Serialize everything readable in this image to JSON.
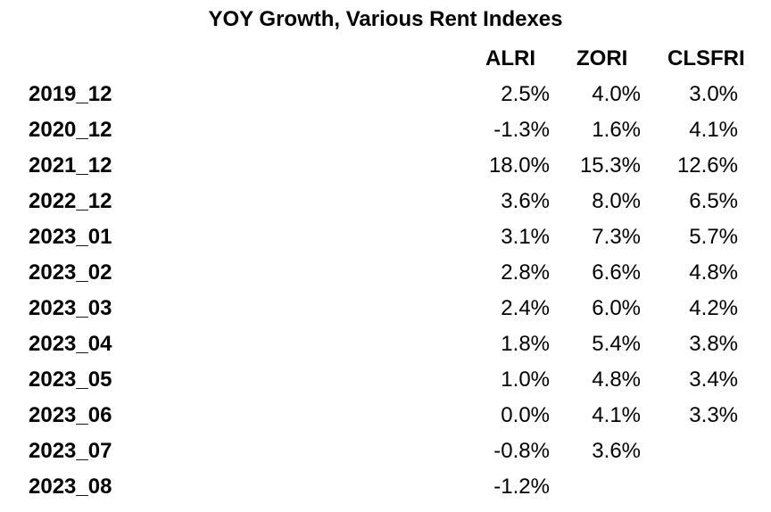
{
  "chart_data": {
    "type": "table",
    "title": "YOY Growth, Various Rent Indexes",
    "columns": [
      "ALRI",
      "ZORI",
      "CLSFRI"
    ],
    "rows": [
      {
        "label": "2019_12",
        "values": [
          "2.5%",
          "4.0%",
          "3.0%"
        ]
      },
      {
        "label": "2020_12",
        "values": [
          "-1.3%",
          "1.6%",
          "4.1%"
        ]
      },
      {
        "label": "2021_12",
        "values": [
          "18.0%",
          "15.3%",
          "12.6%"
        ]
      },
      {
        "label": "2022_12",
        "values": [
          "3.6%",
          "8.0%",
          "6.5%"
        ]
      },
      {
        "label": "2023_01",
        "values": [
          "3.1%",
          "7.3%",
          "5.7%"
        ]
      },
      {
        "label": "2023_02",
        "values": [
          "2.8%",
          "6.6%",
          "4.8%"
        ]
      },
      {
        "label": "2023_03",
        "values": [
          "2.4%",
          "6.0%",
          "4.2%"
        ]
      },
      {
        "label": "2023_04",
        "values": [
          "1.8%",
          "5.4%",
          "3.8%"
        ]
      },
      {
        "label": "2023_05",
        "values": [
          "1.0%",
          "4.8%",
          "3.4%"
        ]
      },
      {
        "label": "2023_06",
        "values": [
          "0.0%",
          "4.1%",
          "3.3%"
        ]
      },
      {
        "label": "2023_07",
        "values": [
          "-0.8%",
          "3.6%",
          ""
        ]
      },
      {
        "label": "2023_08",
        "values": [
          "-1.2%",
          "",
          ""
        ]
      }
    ]
  }
}
